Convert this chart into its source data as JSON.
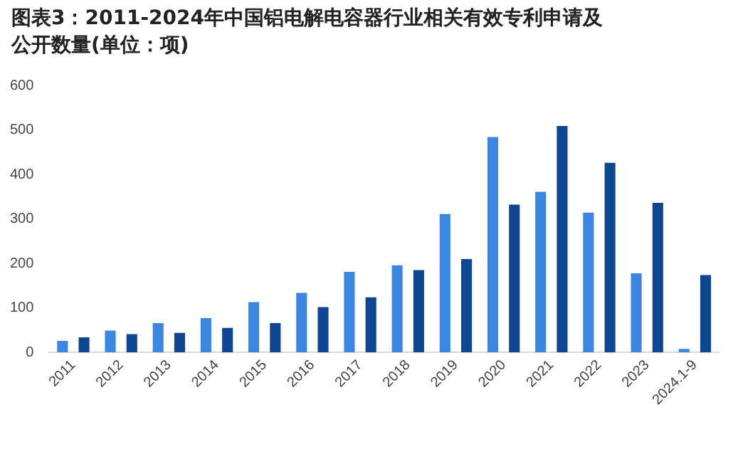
{
  "chart_data": {
    "type": "bar",
    "title": "图表3：2011-2024年中国铝电解电容器行业相关有效专利申请及公开数量(单位：项)",
    "categories": [
      "2011",
      "2012",
      "2013",
      "2014",
      "2015",
      "2016",
      "2017",
      "2018",
      "2019",
      "2020",
      "2021",
      "2022",
      "2023",
      "2024.1-9"
    ],
    "series": [
      {
        "color": "#3a86e0",
        "values": [
          26,
          49,
          66,
          77,
          113,
          134,
          181,
          196,
          311,
          484,
          361,
          314,
          178,
          8
        ]
      },
      {
        "color": "#0f4691",
        "values": [
          34,
          41,
          44,
          55,
          66,
          102,
          124,
          185,
          210,
          332,
          509,
          426,
          336,
          174
        ]
      }
    ],
    "ylim": [
      0,
      600
    ],
    "yticks": [
      0,
      100,
      200,
      300,
      400,
      500,
      600
    ],
    "grid": false,
    "legend": false
  }
}
